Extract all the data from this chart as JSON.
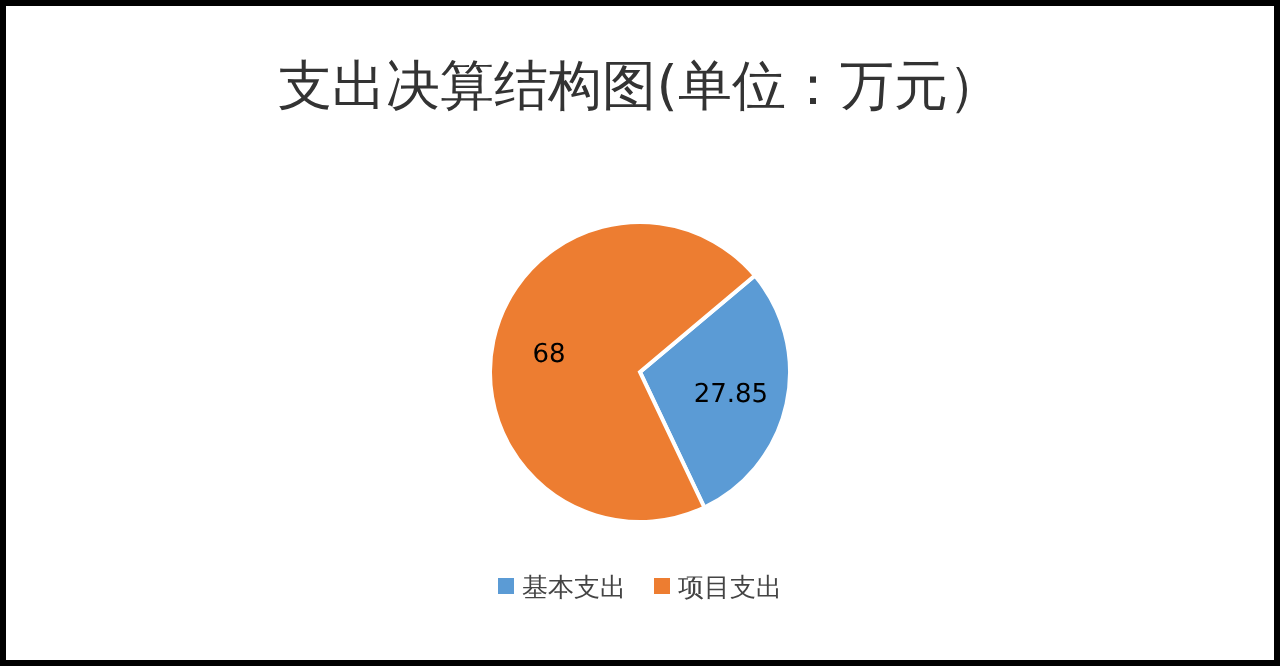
{
  "chart_data": {
    "type": "pie",
    "title": "支出决算结构图(单位：万元）",
    "categories": [
      "基本支出",
      "项目支出"
    ],
    "values": [
      27.85,
      68
    ],
    "colors": [
      "#5b9bd5",
      "#ed7d31"
    ],
    "data_labels": true,
    "legend": "bottom"
  }
}
